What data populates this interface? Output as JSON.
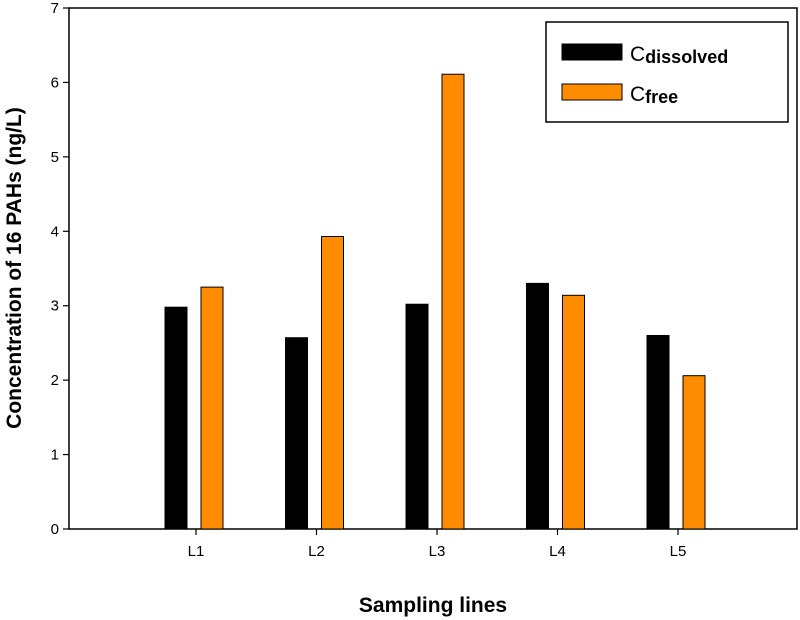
{
  "chart_data": {
    "type": "bar",
    "xlabel": "Sampling lines",
    "ylabel": "Concentration of 16 PAHs (ng/L)",
    "categories": [
      "L1",
      "L2",
      "L3",
      "L4",
      "L5"
    ],
    "ylim": [
      0,
      7
    ],
    "yticks": [
      0,
      1,
      2,
      3,
      4,
      5,
      6,
      7
    ],
    "grid": false,
    "legend_position": "top-right",
    "series": [
      {
        "name": "C",
        "subscript": "dissolved",
        "color": "#000000",
        "values": [
          2.98,
          2.57,
          3.02,
          3.3,
          2.6
        ]
      },
      {
        "name": "C",
        "subscript": "free",
        "color": "#ff8c00",
        "values": [
          3.25,
          3.93,
          6.11,
          3.14,
          2.06
        ]
      }
    ]
  }
}
